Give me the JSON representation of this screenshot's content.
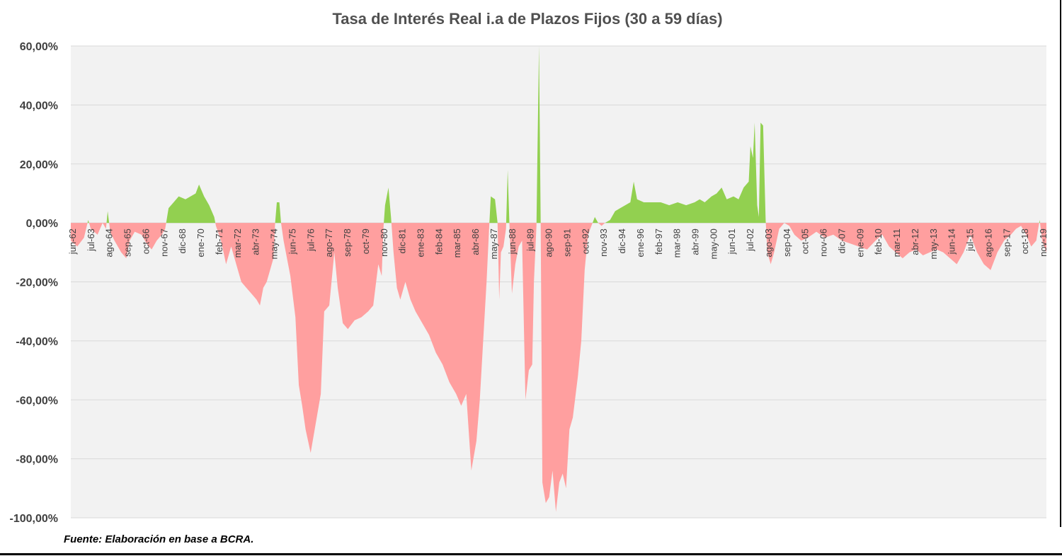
{
  "chart_data": {
    "type": "area",
    "title": "Tasa de Interés Real i.a de Plazos Fijos (30 a 59 días)",
    "source": "Fuente: Elaboración en base a BCRA.",
    "ylim": [
      -100,
      60
    ],
    "yticks": [
      60,
      40,
      20,
      0,
      -20,
      -40,
      -60,
      -80,
      -100
    ],
    "ytick_labels": [
      "60,00%",
      "40,00%",
      "20,00%",
      "0,00%",
      "-20,00%",
      "-40,00%",
      "-60,00%",
      "-80,00%",
      "-100,00%"
    ],
    "x_tick_labels": [
      "jun-62",
      "jul-63",
      "ago-64",
      "sep-65",
      "oct-66",
      "nov-67",
      "dic-68",
      "ene-70",
      "feb-71",
      "mar-72",
      "abr-73",
      "may-74",
      "jun-75",
      "jul-76",
      "ago-77",
      "sep-78",
      "oct-79",
      "nov-80",
      "dic-81",
      "ene-83",
      "feb-84",
      "mar-85",
      "abr-86",
      "may-87",
      "jun-88",
      "jul-89",
      "ago-90",
      "sep-91",
      "oct-92",
      "nov-93",
      "dic-94",
      "ene-96",
      "feb-97",
      "mar-98",
      "abr-99",
      "may-00",
      "jun-01",
      "jul-02",
      "ago-03",
      "sep-04",
      "oct-05",
      "nov-06",
      "dic-07",
      "ene-09",
      "feb-10",
      "mar-11",
      "abr-12",
      "may-13",
      "jun-14",
      "jul-15",
      "ago-16",
      "sep-17",
      "oct-18",
      "nov-19"
    ],
    "grid": true,
    "legend": "none",
    "colors": {
      "positive": "#92D050",
      "negative": "#FF9F9F",
      "background": "#F2F2F2",
      "grid": "#D9D9D9"
    },
    "x_start": 1962.42,
    "x_end": 2020.1,
    "series": [
      {
        "points": [
          [
            1962.42,
            -6
          ],
          [
            1962.8,
            -8
          ],
          [
            1963.2,
            -5
          ],
          [
            1963.45,
            1
          ],
          [
            1963.6,
            -2
          ],
          [
            1964.0,
            -4
          ],
          [
            1964.3,
            0
          ],
          [
            1964.5,
            -2
          ],
          [
            1964.6,
            4
          ],
          [
            1964.75,
            -3
          ],
          [
            1965.0,
            -6
          ],
          [
            1965.4,
            -10
          ],
          [
            1965.7,
            -12
          ],
          [
            1965.9,
            -6
          ],
          [
            1966.2,
            -3
          ],
          [
            1966.6,
            -4
          ],
          [
            1966.9,
            -7
          ],
          [
            1967.2,
            -9
          ],
          [
            1967.5,
            -6
          ],
          [
            1967.8,
            -4
          ],
          [
            1968.0,
            -2
          ],
          [
            1968.2,
            5
          ],
          [
            1968.5,
            7
          ],
          [
            1968.8,
            9
          ],
          [
            1969.2,
            8
          ],
          [
            1969.5,
            9
          ],
          [
            1969.8,
            10
          ],
          [
            1970.0,
            13
          ],
          [
            1970.3,
            9
          ],
          [
            1970.6,
            6
          ],
          [
            1970.9,
            2
          ],
          [
            1971.0,
            -1
          ],
          [
            1971.3,
            -6
          ],
          [
            1971.6,
            -14
          ],
          [
            1971.9,
            -8
          ],
          [
            1972.2,
            -14
          ],
          [
            1972.5,
            -20
          ],
          [
            1972.8,
            -22
          ],
          [
            1973.1,
            -24
          ],
          [
            1973.4,
            -26
          ],
          [
            1973.6,
            -28
          ],
          [
            1973.8,
            -22
          ],
          [
            1974.0,
            -20
          ],
          [
            1974.2,
            -16
          ],
          [
            1974.4,
            -12
          ],
          [
            1974.5,
            0
          ],
          [
            1974.6,
            7
          ],
          [
            1974.75,
            7
          ],
          [
            1974.85,
            0
          ],
          [
            1975.0,
            -6
          ],
          [
            1975.4,
            -18
          ],
          [
            1975.7,
            -32
          ],
          [
            1975.9,
            -55
          ],
          [
            1976.1,
            -62
          ],
          [
            1976.3,
            -70
          ],
          [
            1976.6,
            -78
          ],
          [
            1976.9,
            -68
          ],
          [
            1977.2,
            -58
          ],
          [
            1977.4,
            -30
          ],
          [
            1977.7,
            -28
          ],
          [
            1978.0,
            -10
          ],
          [
            1978.2,
            -22
          ],
          [
            1978.5,
            -34
          ],
          [
            1978.8,
            -36
          ],
          [
            1979.2,
            -33
          ],
          [
            1979.6,
            -32
          ],
          [
            1980.0,
            -30
          ],
          [
            1980.3,
            -28
          ],
          [
            1980.6,
            -14
          ],
          [
            1980.8,
            -18
          ],
          [
            1980.9,
            -2
          ],
          [
            1981.0,
            6
          ],
          [
            1981.2,
            12
          ],
          [
            1981.35,
            2
          ],
          [
            1981.5,
            -10
          ],
          [
            1981.7,
            -22
          ],
          [
            1981.9,
            -26
          ],
          [
            1982.2,
            -20
          ],
          [
            1982.5,
            -26
          ],
          [
            1982.8,
            -30
          ],
          [
            1983.2,
            -34
          ],
          [
            1983.6,
            -38
          ],
          [
            1984.0,
            -44
          ],
          [
            1984.4,
            -48
          ],
          [
            1984.8,
            -54
          ],
          [
            1985.2,
            -58
          ],
          [
            1985.5,
            -62
          ],
          [
            1985.8,
            -58
          ],
          [
            1986.1,
            -84
          ],
          [
            1986.4,
            -74
          ],
          [
            1986.6,
            -60
          ],
          [
            1986.8,
            -40
          ],
          [
            1987.0,
            -20
          ],
          [
            1987.15,
            -2
          ],
          [
            1987.25,
            9
          ],
          [
            1987.5,
            8
          ],
          [
            1987.65,
            0
          ],
          [
            1987.75,
            -26
          ],
          [
            1987.85,
            -10
          ],
          [
            1988.0,
            -8
          ],
          [
            1988.15,
            -2
          ],
          [
            1988.25,
            18
          ],
          [
            1988.35,
            0
          ],
          [
            1988.5,
            -24
          ],
          [
            1988.7,
            -14
          ],
          [
            1988.9,
            -8
          ],
          [
            1989.1,
            -6
          ],
          [
            1989.3,
            -60
          ],
          [
            1989.5,
            -50
          ],
          [
            1989.7,
            -48
          ],
          [
            1989.8,
            -20
          ],
          [
            1989.95,
            -1
          ],
          [
            1990.0,
            20
          ],
          [
            1990.1,
            60
          ],
          [
            1990.2,
            0
          ],
          [
            1990.3,
            -88
          ],
          [
            1990.5,
            -95
          ],
          [
            1990.7,
            -93
          ],
          [
            1990.9,
            -84
          ],
          [
            1991.1,
            -98
          ],
          [
            1991.3,
            -88
          ],
          [
            1991.5,
            -85
          ],
          [
            1991.7,
            -90
          ],
          [
            1991.9,
            -70
          ],
          [
            1992.1,
            -66
          ],
          [
            1992.4,
            -52
          ],
          [
            1992.6,
            -40
          ],
          [
            1992.8,
            -16
          ],
          [
            1993.0,
            -4
          ],
          [
            1993.2,
            -1
          ],
          [
            1993.4,
            2
          ],
          [
            1993.6,
            0
          ],
          [
            1993.8,
            -1
          ],
          [
            1994.0,
            0
          ],
          [
            1994.3,
            1
          ],
          [
            1994.6,
            4
          ],
          [
            1994.9,
            5
          ],
          [
            1995.2,
            6
          ],
          [
            1995.5,
            7
          ],
          [
            1995.7,
            14
          ],
          [
            1995.9,
            8
          ],
          [
            1996.3,
            7
          ],
          [
            1996.8,
            7
          ],
          [
            1997.3,
            7
          ],
          [
            1997.8,
            6
          ],
          [
            1998.3,
            7
          ],
          [
            1998.8,
            6
          ],
          [
            1999.3,
            7
          ],
          [
            1999.6,
            8
          ],
          [
            1999.9,
            7
          ],
          [
            2000.3,
            9
          ],
          [
            2000.6,
            10
          ],
          [
            2000.9,
            12
          ],
          [
            2001.2,
            8
          ],
          [
            2001.6,
            9
          ],
          [
            2001.9,
            8
          ],
          [
            2002.2,
            12
          ],
          [
            2002.5,
            14
          ],
          [
            2002.6,
            26
          ],
          [
            2002.75,
            22
          ],
          [
            2002.85,
            34
          ],
          [
            2003.0,
            6
          ],
          [
            2003.1,
            2
          ],
          [
            2003.2,
            34
          ],
          [
            2003.35,
            33
          ],
          [
            2003.5,
            1
          ],
          [
            2003.6,
            -10
          ],
          [
            2003.8,
            -14
          ],
          [
            2004.0,
            -10
          ],
          [
            2004.3,
            -2
          ],
          [
            2004.6,
            0
          ],
          [
            2004.9,
            -1
          ],
          [
            2005.2,
            -4
          ],
          [
            2005.6,
            -6
          ],
          [
            2006.0,
            -5
          ],
          [
            2006.5,
            -3
          ],
          [
            2007.0,
            -5
          ],
          [
            2007.5,
            -4
          ],
          [
            2008.0,
            -6
          ],
          [
            2008.5,
            -7
          ],
          [
            2009.0,
            -8
          ],
          [
            2009.5,
            -9
          ],
          [
            2010.0,
            -6
          ],
          [
            2010.4,
            -4
          ],
          [
            2010.8,
            -8
          ],
          [
            2011.2,
            -10
          ],
          [
            2011.6,
            -12
          ],
          [
            2012.0,
            -10
          ],
          [
            2012.4,
            -9
          ],
          [
            2012.8,
            -11
          ],
          [
            2013.2,
            -10
          ],
          [
            2013.6,
            -9
          ],
          [
            2014.0,
            -10
          ],
          [
            2014.4,
            -12
          ],
          [
            2014.8,
            -14
          ],
          [
            2015.2,
            -10
          ],
          [
            2015.6,
            -4
          ],
          [
            2016.0,
            -10
          ],
          [
            2016.4,
            -14
          ],
          [
            2016.8,
            -16
          ],
          [
            2017.2,
            -10
          ],
          [
            2017.6,
            -6
          ],
          [
            2018.0,
            -4
          ],
          [
            2018.3,
            -2
          ],
          [
            2018.6,
            -1
          ],
          [
            2018.9,
            -4
          ],
          [
            2019.2,
            -8
          ],
          [
            2019.5,
            -6
          ],
          [
            2019.7,
            1
          ],
          [
            2019.85,
            -6
          ],
          [
            2020.1,
            -10
          ]
        ]
      }
    ]
  }
}
